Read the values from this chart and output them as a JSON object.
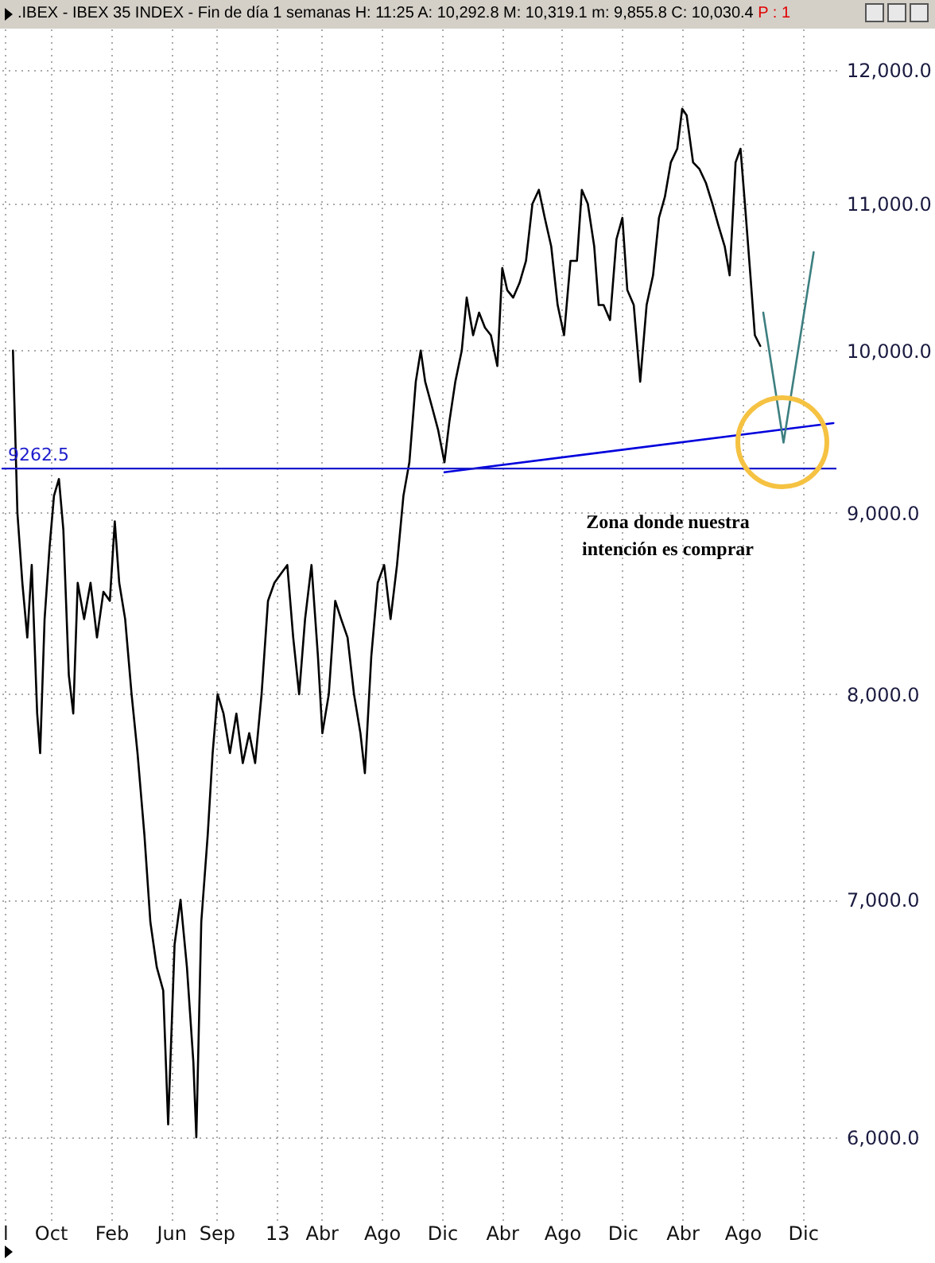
{
  "chart_data": {
    "type": "line",
    "title": ".IBEX - IBEX 35 INDEX - Fin de día 1 semanas  H: 11:25  A: 10,292.8  M: 10,319.1  m: 9,855.8  C: 10,030.4",
    "subtitle": "P : 1",
    "xlim": [
      "2011-06-24",
      "2016-02-07"
    ],
    "xticks": [
      {
        "value": "2011-07-01",
        "label": "l"
      },
      {
        "value": "2011-10-01",
        "label": "Oct"
      },
      {
        "value": "2012-02-01",
        "label": "Feb"
      },
      {
        "value": "2012-06-01",
        "label": "Jun"
      },
      {
        "value": "2012-09-01",
        "label": "Sep"
      },
      {
        "value": "2013-01-01",
        "label": "13"
      },
      {
        "value": "2013-04-01",
        "label": "Abr"
      },
      {
        "value": "2013-08-01",
        "label": "Ago"
      },
      {
        "value": "2013-12-01",
        "label": "Dic"
      },
      {
        "value": "2014-04-01",
        "label": "Abr"
      },
      {
        "value": "2014-08-01",
        "label": "Ago"
      },
      {
        "value": "2014-12-01",
        "label": "Dic"
      },
      {
        "value": "2015-04-01",
        "label": "Abr"
      },
      {
        "value": "2015-08-01",
        "label": "Ago"
      },
      {
        "value": "2015-12-01",
        "label": "Dic"
      }
    ],
    "ylim": [
      5680,
      12325
    ],
    "log": true,
    "yticks": [
      {
        "value": 6000,
        "label": "6,000.0"
      },
      {
        "value": 7000,
        "label": "7,000.0"
      },
      {
        "value": 8000,
        "label": "8,000.0"
      },
      {
        "value": 9000,
        "label": "9,000.0"
      },
      {
        "value": 10000,
        "label": "10,000.0"
      },
      {
        "value": 11000,
        "label": "11,000.0"
      },
      {
        "value": 12000,
        "label": "12,000.0"
      }
    ],
    "grid": true,
    "series": [
      {
        "color": "#000000",
        "x": [
          "2011-07-17",
          "2011-07-26",
          "2011-08-05",
          "2011-08-15",
          "2011-08-24",
          "2011-09-04",
          "2011-09-10",
          "2011-09-19",
          "2011-09-29",
          "2011-10-08",
          "2011-10-18",
          "2011-10-27",
          "2011-11-07",
          "2011-11-16",
          "2011-11-25",
          "2011-12-08",
          "2011-12-21",
          "2012-01-03",
          "2012-01-16",
          "2012-01-29",
          "2012-02-08",
          "2012-02-17",
          "2012-02-29",
          "2012-03-13",
          "2012-03-25",
          "2012-04-08",
          "2012-04-20",
          "2012-05-03",
          "2012-05-16",
          "2012-05-26",
          "2012-06-08",
          "2012-06-20",
          "2012-07-03",
          "2012-07-16",
          "2012-07-22",
          "2012-08-01",
          "2012-08-14",
          "2012-08-24",
          "2012-09-03",
          "2012-09-15",
          "2012-09-28",
          "2012-10-11",
          "2012-10-24",
          "2012-11-06",
          "2012-11-18",
          "2012-12-01",
          "2012-12-14",
          "2012-12-27",
          "2013-01-09",
          "2013-01-22",
          "2013-02-03",
          "2013-02-15",
          "2013-02-27",
          "2013-03-12",
          "2013-03-25",
          "2013-04-03",
          "2013-04-16",
          "2013-04-29",
          "2013-05-11",
          "2013-05-24",
          "2013-06-06",
          "2013-06-19",
          "2013-06-28",
          "2013-07-11",
          "2013-07-24",
          "2013-08-06",
          "2013-08-19",
          "2013-09-01",
          "2013-09-14",
          "2013-09-26",
          "2013-10-09",
          "2013-10-19",
          "2013-10-28",
          "2013-11-10",
          "2013-11-23",
          "2013-12-06",
          "2013-12-16",
          "2013-12-28",
          "2014-01-10",
          "2014-01-20",
          "2014-02-02",
          "2014-02-14",
          "2014-02-26",
          "2014-03-10",
          "2014-03-23",
          "2014-04-02",
          "2014-04-12",
          "2014-04-24",
          "2014-05-07",
          "2014-05-20",
          "2014-06-02",
          "2014-06-15",
          "2014-06-27",
          "2014-07-10",
          "2014-07-23",
          "2014-08-05",
          "2014-08-18",
          "2014-08-31",
          "2014-09-10",
          "2014-09-22",
          "2014-10-05",
          "2014-10-14",
          "2014-10-24",
          "2014-11-06",
          "2014-11-19",
          "2014-12-01",
          "2014-12-11",
          "2014-12-24",
          "2015-01-06",
          "2015-01-19",
          "2015-02-01",
          "2015-02-13",
          "2015-02-25",
          "2015-03-09",
          "2015-03-22",
          "2015-04-01",
          "2015-04-10",
          "2015-04-23",
          "2015-05-06",
          "2015-05-19",
          "2015-06-01",
          "2015-06-13",
          "2015-06-26",
          "2015-07-06",
          "2015-07-18",
          "2015-07-28",
          "2015-08-07",
          "2015-08-17",
          "2015-08-26",
          "2015-09-06"
        ],
        "values": [
          10000,
          9000,
          8600,
          8300,
          8700,
          7900,
          7700,
          8400,
          8800,
          9100,
          9200,
          8900,
          8100,
          7900,
          8600,
          8400,
          8600,
          8300,
          8550,
          8500,
          8950,
          8600,
          8400,
          8000,
          7700,
          7300,
          6900,
          6700,
          6600,
          6050,
          6800,
          7000,
          6700,
          6300,
          6000,
          6900,
          7300,
          7700,
          8000,
          7900,
          7700,
          7900,
          7650,
          7800,
          7650,
          8000,
          8500,
          8600,
          8650,
          8700,
          8300,
          8000,
          8400,
          8700,
          8200,
          7800,
          8000,
          8500,
          8400,
          8300,
          8000,
          7800,
          7600,
          8200,
          8600,
          8700,
          8400,
          8700,
          9100,
          9300,
          9800,
          10000,
          9800,
          9650,
          9500,
          9300,
          9550,
          9800,
          10000,
          10350,
          10100,
          10250,
          10150,
          10100,
          9900,
          10550,
          10400,
          10350,
          10450,
          10600,
          11000,
          11100,
          10900,
          10700,
          10300,
          10100,
          10600,
          10600,
          11100,
          11000,
          10700,
          10300,
          10300,
          10200,
          10750,
          10900,
          10400,
          10300,
          9800,
          10300,
          10500,
          10900,
          11050,
          11300,
          11400,
          11700,
          11650,
          11300,
          11250,
          11150,
          11000,
          10850,
          10700,
          10500,
          11300,
          11400,
          10950,
          10500,
          10100,
          10030
        ]
      },
      {
        "color": "#0000dd",
        "x": [
          "2013-12-06",
          "2016-02-01"
        ],
        "values": [
          9240,
          9540
        ]
      },
      {
        "color": "#3d7f80",
        "x": [
          "2015-09-12",
          "2015-10-23",
          "2015-12-23"
        ],
        "values": [
          10250,
          9420,
          10660
        ]
      }
    ],
    "ref_lines": [
      {
        "axis": "y",
        "value": 9262.5,
        "label": "9262.5",
        "color": "#1a1acc"
      }
    ],
    "annotations": [
      "Zona donde nuestra\nintención es comprar"
    ]
  }
}
